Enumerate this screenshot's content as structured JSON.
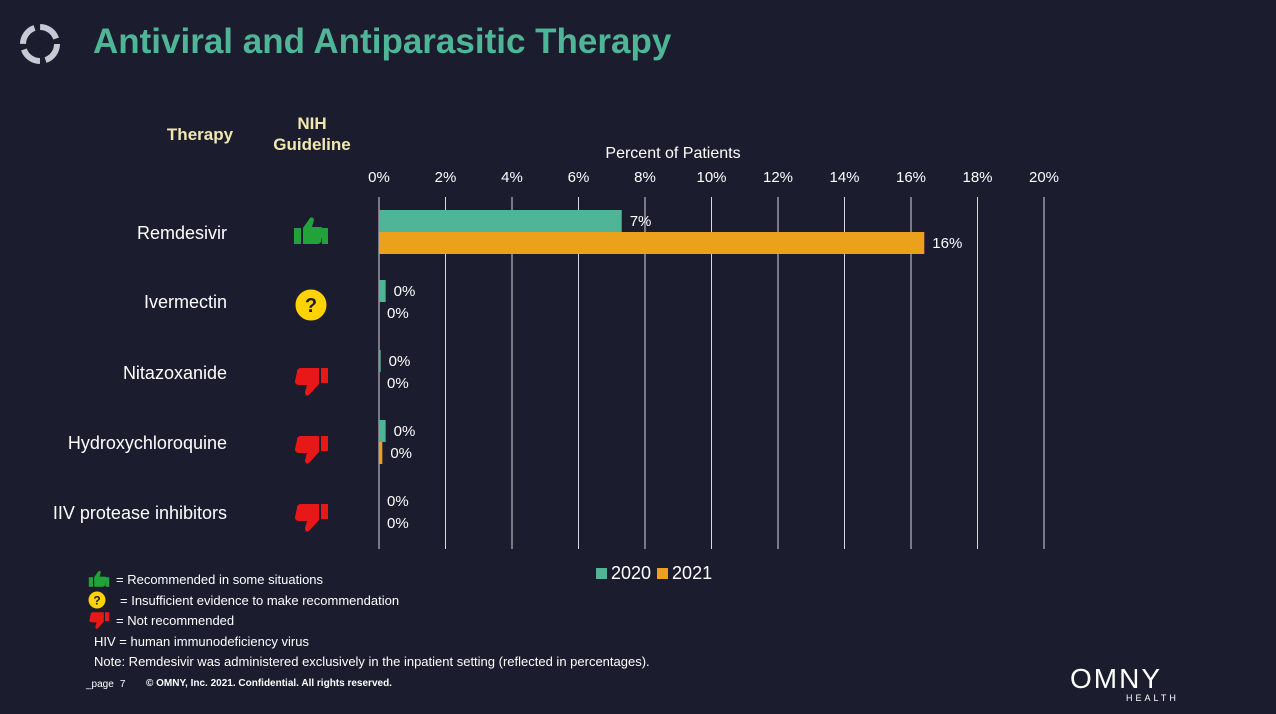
{
  "header": {
    "title": "Antiviral and Antiparasitic Therapy",
    "col_therapy": "Therapy",
    "col_nih": "NIH Guideline"
  },
  "colors": {
    "title": "#4fb596",
    "header_text": "#f1e7b0",
    "series_2020": "#4fb596",
    "series_2021": "#eba11b",
    "recommended": "#22a33a",
    "insufficient": "#ffd200",
    "not_recommended": "#e81818"
  },
  "rows": [
    {
      "therapy": "Remdesivir",
      "guideline_icon": "thumbs-up-icon"
    },
    {
      "therapy": "Ivermectin",
      "guideline_icon": "question-icon"
    },
    {
      "therapy": "Nitazoxanide",
      "guideline_icon": "thumbs-down-icon"
    },
    {
      "therapy": "Hydroxychloroquine",
      "guideline_icon": "thumbs-down-icon"
    },
    {
      "therapy": "IIV protease inhibitors",
      "guideline_icon": "thumbs-down-icon"
    }
  ],
  "chart_data": {
    "type": "bar",
    "orientation": "horizontal",
    "xlabel": "Percent of Patients",
    "xlim": [
      0,
      20
    ],
    "xticks": [
      0,
      2,
      4,
      6,
      8,
      10,
      12,
      14,
      16,
      18,
      20
    ],
    "tick_labels": [
      "0%",
      "2%",
      "4%",
      "6%",
      "8%",
      "10%",
      "12%",
      "14%",
      "16%",
      "18%",
      "20%"
    ],
    "categories": [
      "Remdesivir",
      "Ivermectin",
      "Nitazoxanide",
      "Hydroxychloroquine",
      "IIV protease inhibitors"
    ],
    "series": [
      {
        "name": "2020",
        "values": [
          7.3,
          0.2,
          0.05,
          0.2,
          0.0
        ],
        "labels": [
          "7%",
          "0%",
          "0%",
          "0%",
          "0%"
        ]
      },
      {
        "name": "2021",
        "values": [
          16.4,
          0.0,
          0.0,
          0.1,
          0.0
        ],
        "labels": [
          "16%",
          "0%",
          "0%",
          "0%",
          "0%"
        ]
      }
    ],
    "grid": true,
    "legend_position": "bottom"
  },
  "legend": {
    "recommended": "= Recommended in some situations",
    "insufficient": "= Insufficient evidence to make recommendation",
    "not_recommended": "= Not recommended",
    "hiv": "HIV = human immunodeficiency virus",
    "note": "Note: Remdesivir was administered exclusively in the inpatient setting (reflected in percentages)."
  },
  "footer": {
    "page_label": "_page",
    "page_number": "7",
    "copyright": "© OMNY, Inc. 2021. Confidential. All rights reserved."
  },
  "brand": {
    "name": "OMNY",
    "sub": "HEALTH"
  }
}
